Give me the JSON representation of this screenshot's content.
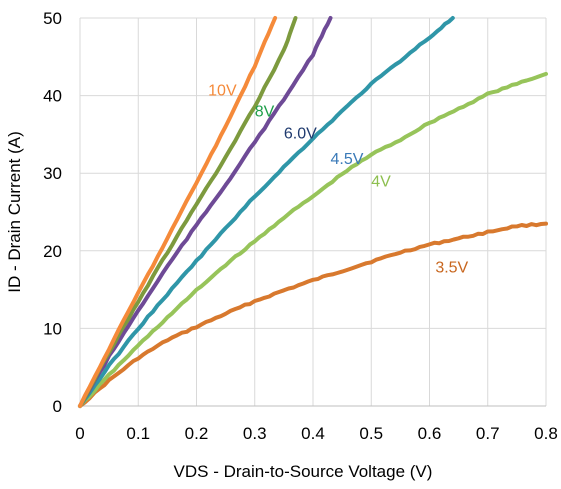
{
  "chart_data": {
    "type": "line",
    "title": "",
    "xlabel": "VDS - Drain-to-Source Voltage (V)",
    "ylabel": "ID - Drain Current (A)",
    "xlim": [
      0,
      0.8
    ],
    "ylim": [
      0,
      50
    ],
    "x_ticks": [
      "0",
      "0.1",
      "0.2",
      "0.3",
      "0.4",
      "0.5",
      "0.6",
      "0.7",
      "0.8"
    ],
    "y_ticks": [
      "0",
      "10",
      "20",
      "30",
      "40",
      "50"
    ],
    "grid": true,
    "legend": "none (inline curve labels)",
    "series": [
      {
        "name": "3.5V",
        "color": "#d8792e",
        "x": [
          0,
          0.05,
          0.1,
          0.15,
          0.2,
          0.25,
          0.3,
          0.35,
          0.4,
          0.45,
          0.5,
          0.55,
          0.6,
          0.65,
          0.7,
          0.75,
          0.8
        ],
        "y": [
          0,
          3.3,
          6.2,
          8.5,
          10.2,
          11.9,
          13.5,
          14.9,
          16.2,
          17.4,
          18.6,
          19.8,
          20.8,
          21.6,
          22.4,
          23.2,
          23.5
        ]
      },
      {
        "name": "4V",
        "color": "#97c45a",
        "x": [
          0,
          0.05,
          0.1,
          0.15,
          0.2,
          0.25,
          0.3,
          0.35,
          0.4,
          0.45,
          0.5,
          0.55,
          0.6,
          0.65,
          0.7,
          0.75,
          0.8
        ],
        "y": [
          0,
          4,
          7.8,
          11.4,
          14.9,
          18.2,
          21.2,
          24.3,
          27,
          29.9,
          32.4,
          34.3,
          36.5,
          38.3,
          40.2,
          41.5,
          42.8
        ]
      },
      {
        "name": "4.5V",
        "color": "#2f96a8",
        "x": [
          0,
          0.05,
          0.1,
          0.15,
          0.2,
          0.25,
          0.3,
          0.35,
          0.4,
          0.45,
          0.5,
          0.55,
          0.6,
          0.64
        ],
        "y": [
          0,
          5.2,
          10,
          14.4,
          18.7,
          22.9,
          27,
          30.8,
          34.5,
          38,
          41.5,
          44.5,
          47.5,
          50
        ]
      },
      {
        "name": "6.0V",
        "color": "#6e4a96",
        "x": [
          0,
          0.05,
          0.1,
          0.15,
          0.2,
          0.25,
          0.3,
          0.35,
          0.4,
          0.43
        ],
        "y": [
          0,
          6.4,
          12.3,
          18,
          23.3,
          28.5,
          34,
          39.5,
          45.3,
          50
        ]
      },
      {
        "name": "8V",
        "color": "#7d9a3e",
        "x": [
          0,
          0.05,
          0.1,
          0.15,
          0.2,
          0.25,
          0.3,
          0.35,
          0.37
        ],
        "y": [
          0,
          7,
          13.5,
          19.8,
          26,
          32,
          38.6,
          45.8,
          50
        ]
      },
      {
        "name": "10V",
        "color": "#f58a3a",
        "x": [
          0,
          0.05,
          0.1,
          0.15,
          0.2,
          0.25,
          0.3,
          0.335
        ],
        "y": [
          0,
          7.4,
          14.6,
          21.6,
          28.8,
          36,
          43.8,
          50
        ]
      }
    ],
    "annotations": [
      {
        "text": "10V",
        "color": "#f58a3a",
        "x": 0.22,
        "y": 40
      },
      {
        "text": "8V",
        "color": "#1f9e4a",
        "x": 0.3,
        "y": 37.3
      },
      {
        "text": "6.0V",
        "color": "#1f3a6e",
        "x": 0.35,
        "y": 34.5
      },
      {
        "text": "4.5V",
        "color": "#3a7ab8",
        "x": 0.43,
        "y": 31.2
      },
      {
        "text": "4V",
        "color": "#8dbf4f",
        "x": 0.5,
        "y": 28.3
      },
      {
        "text": "3.5V",
        "color": "#c8661e",
        "x": 0.61,
        "y": 17.2
      }
    ]
  }
}
